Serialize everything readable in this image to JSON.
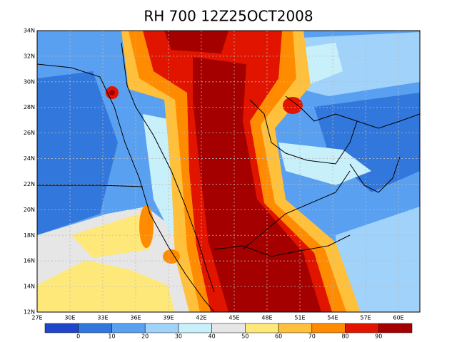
{
  "title": "RH 700 12Z25OCT2008",
  "lat_labels": [
    "34N",
    "32N",
    "30N",
    "28N",
    "26N",
    "24N",
    "22N",
    "20N",
    "18N",
    "16N",
    "14N",
    "12N"
  ],
  "lon_labels": [
    "27E",
    "30E",
    "33E",
    "36E",
    "39E",
    "42E",
    "45E",
    "48E",
    "51E",
    "54E",
    "57E",
    "60E"
  ],
  "colorbar": {
    "colors": [
      "#1e46c8",
      "#3278dc",
      "#5aa0f0",
      "#a0d2fa",
      "#c8f0fa",
      "#e6e6e6",
      "#ffe87a",
      "#ffc03c",
      "#ff8c00",
      "#e11400",
      "#a50000"
    ],
    "labels": [
      0,
      10,
      20,
      30,
      40,
      50,
      60,
      70,
      80,
      90
    ]
  }
}
